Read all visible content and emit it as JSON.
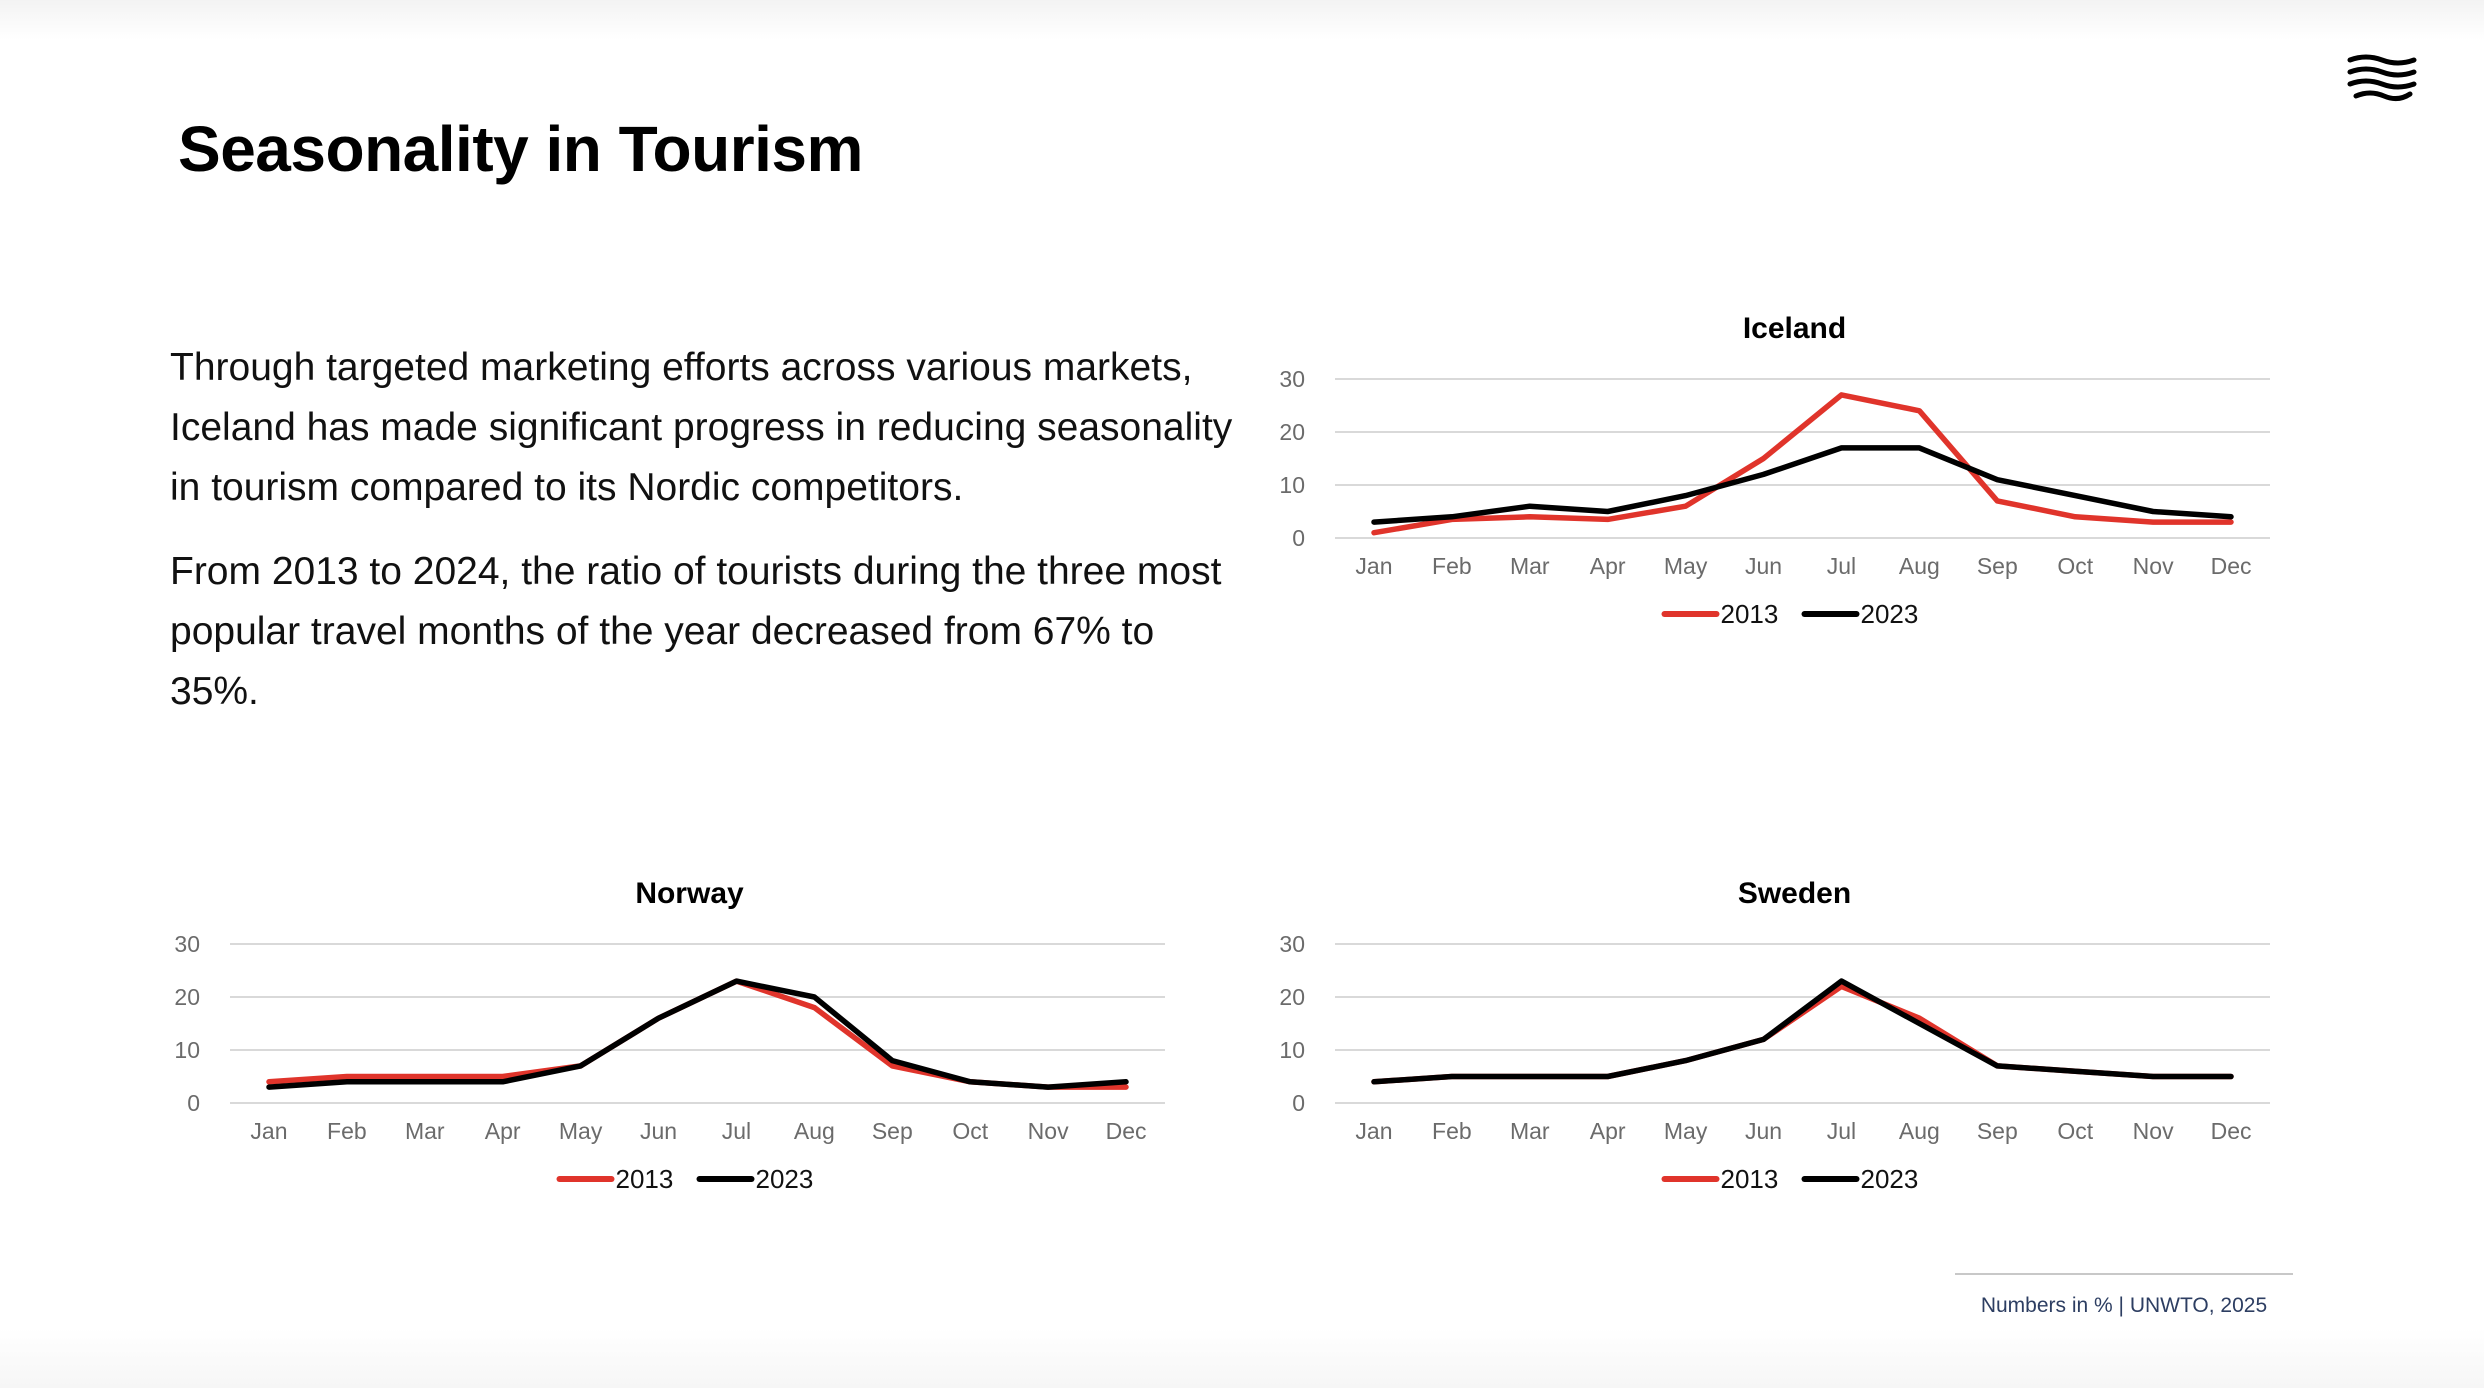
{
  "slide": {
    "title": "Seasonality in Tourism",
    "paragraphs": [
      "Through targeted marketing efforts across various markets, Iceland has made significant progress in reducing seasonality in tourism compared to its Nordic competitors.",
      "From 2013 to 2024, the ratio of tourists during the three most popular travel months of the year decreased from 67% to 35%."
    ],
    "source": "Numbers in % | UNWTO, 2025",
    "logo_icon": "waves-logo-icon"
  },
  "colors": {
    "series_2013": "#e0342b",
    "series_2023": "#000000",
    "grid": "#d9d9d9",
    "tick": "#6b6b6b",
    "source_text": "#2d3e62"
  },
  "chart_data": [
    {
      "type": "line",
      "title": "Iceland",
      "categories": [
        "Jan",
        "Feb",
        "Mar",
        "Apr",
        "May",
        "Jun",
        "Jul",
        "Aug",
        "Sep",
        "Oct",
        "Nov",
        "Dec"
      ],
      "series": [
        {
          "name": "2013",
          "values": [
            1,
            3.5,
            4,
            3.5,
            6,
            15,
            27,
            24,
            7,
            4,
            3,
            3
          ]
        },
        {
          "name": "2023",
          "values": [
            3,
            4,
            6,
            5,
            8,
            12,
            17,
            17,
            11,
            8,
            5,
            4
          ]
        }
      ],
      "ylim": [
        0,
        30
      ],
      "yticks": [
        0,
        10,
        20,
        30
      ],
      "grid": true,
      "legend": "bottom"
    },
    {
      "type": "line",
      "title": "Norway",
      "categories": [
        "Jan",
        "Feb",
        "Mar",
        "Apr",
        "May",
        "Jun",
        "Jul",
        "Aug",
        "Sep",
        "Oct",
        "Nov",
        "Dec"
      ],
      "series": [
        {
          "name": "2013",
          "values": [
            4,
            5,
            5,
            5,
            7,
            16,
            23,
            18,
            7,
            4,
            3,
            3
          ]
        },
        {
          "name": "2023",
          "values": [
            3,
            4,
            4,
            4,
            7,
            16,
            23,
            20,
            8,
            4,
            3,
            4
          ]
        }
      ],
      "ylim": [
        0,
        30
      ],
      "yticks": [
        0,
        10,
        20,
        30
      ],
      "grid": true,
      "legend": "bottom"
    },
    {
      "type": "line",
      "title": "Sweden",
      "categories": [
        "Jan",
        "Feb",
        "Mar",
        "Apr",
        "May",
        "Jun",
        "Jul",
        "Aug",
        "Sep",
        "Oct",
        "Nov",
        "Dec"
      ],
      "series": [
        {
          "name": "2013",
          "values": [
            4,
            5,
            5,
            5,
            8,
            12,
            22,
            16,
            7,
            6,
            5,
            5
          ]
        },
        {
          "name": "2023",
          "values": [
            4,
            5,
            5,
            5,
            8,
            12,
            23,
            15,
            7,
            6,
            5,
            5
          ]
        }
      ],
      "ylim": [
        0,
        30
      ],
      "yticks": [
        0,
        10,
        20,
        30
      ],
      "grid": true,
      "legend": "bottom"
    }
  ]
}
